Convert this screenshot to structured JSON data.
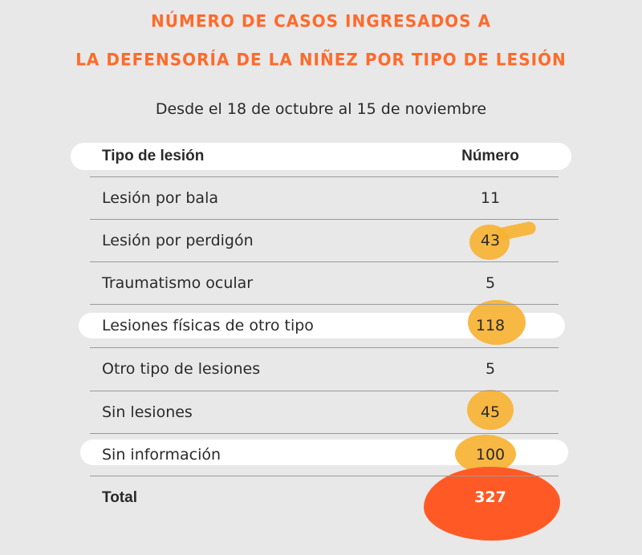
{
  "title_line1": "NÚMERO DE CASOS INGRESADOS A",
  "title_line2": "LA DEFENSORÍA DE LA NIÑEZ POR TIPO DE LESIÓN",
  "subtitle": "Desde el 18 de octubre al 15 de noviembre",
  "colors": {
    "title": "#ff6a2b",
    "highlight_marker": "#f7b234",
    "total_marker": "#ff5a26"
  },
  "chart_data": {
    "type": "table",
    "columns": [
      "Tipo de lesión",
      "Número"
    ],
    "rows": [
      [
        "Lesión por bala",
        "11"
      ],
      [
        "Lesión por perdigón",
        "43"
      ],
      [
        "Traumatismo ocular",
        "5"
      ],
      [
        "Lesiones físicas de otro tipo",
        "118"
      ],
      [
        "Otro tipo de lesiones",
        "5"
      ],
      [
        "Sin lesiones",
        "45"
      ],
      [
        "Sin información",
        "100"
      ]
    ],
    "total": [
      "Total",
      "327"
    ]
  }
}
